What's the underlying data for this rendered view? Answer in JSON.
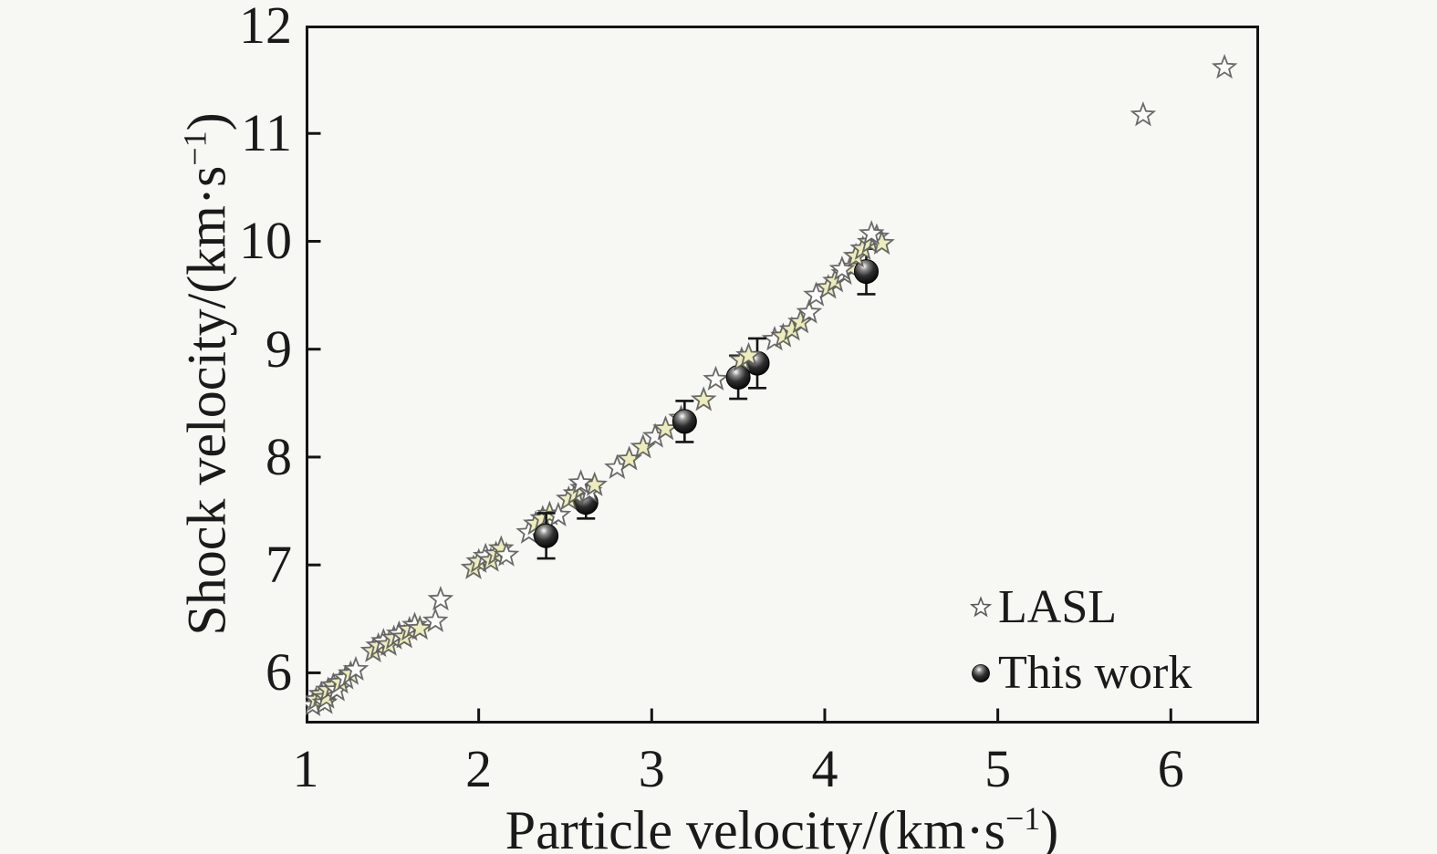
{
  "figure": {
    "background": "#f7f7f4",
    "frame_color": "#141414",
    "text_color": "#1a1a1a"
  },
  "axes": {
    "xlabel": {
      "prefix": "Particle velocity/(km·s",
      "sup": "−1",
      "suffix": ")"
    },
    "ylabel": {
      "prefix": "Shock velocity/(km·s",
      "sup": "−1",
      "suffix": ")"
    },
    "x_ticks": [
      1,
      2,
      3,
      4,
      5,
      6
    ],
    "y_ticks": [
      6,
      7,
      8,
      9,
      10,
      11,
      12
    ]
  },
  "legend": {
    "items": [
      {
        "label": "LASL",
        "marker": "open-star"
      },
      {
        "label": "This work",
        "marker": "filled-sphere"
      }
    ]
  },
  "chart_data": {
    "type": "scatter",
    "title": "",
    "xlabel": "Particle velocity/(km·s⁻¹)",
    "ylabel": "Shock velocity/(km·s⁻¹)",
    "xlim": [
      1,
      6.51
    ],
    "ylim": [
      5.53,
      12
    ],
    "x_ticks": [
      1,
      2,
      3,
      4,
      5,
      6
    ],
    "y_ticks": [
      6,
      7,
      8,
      9,
      10,
      11,
      12
    ],
    "grid": false,
    "legend_position": "inside lower right",
    "marker_styles": {
      "star_fill_yellow": "#ececbc",
      "star_fill_white": "#fcfcfa",
      "star_stroke": "#5a5a5a",
      "sphere_color": "#0a0a0a",
      "errorbar_color": "#141414"
    },
    "point_format_lasl": "[up, us, fill: y=pale-yellow | w=white, optional layer 2 = drawn above circles]",
    "point_format_this_work": "[up, us, y_error]",
    "series": [
      {
        "name": "LASL",
        "marker": "open-star",
        "points": [
          [
            1.04,
            5.7,
            "w"
          ],
          [
            1.06,
            5.75,
            "y"
          ],
          [
            1.09,
            5.8,
            "y"
          ],
          [
            1.11,
            5.72,
            "w"
          ],
          [
            1.12,
            5.77,
            "y"
          ],
          [
            1.13,
            5.84,
            "y"
          ],
          [
            1.16,
            5.88,
            "y"
          ],
          [
            1.18,
            5.84,
            "w"
          ],
          [
            1.2,
            5.91,
            "y"
          ],
          [
            1.23,
            5.95,
            "w"
          ],
          [
            1.26,
            5.99,
            "y"
          ],
          [
            1.29,
            6.03,
            "w"
          ],
          [
            1.39,
            6.2,
            "y"
          ],
          [
            1.42,
            6.25,
            "y"
          ],
          [
            1.45,
            6.29,
            "w"
          ],
          [
            1.48,
            6.26,
            "y"
          ],
          [
            1.51,
            6.32,
            "y"
          ],
          [
            1.54,
            6.36,
            "w"
          ],
          [
            1.57,
            6.33,
            "y"
          ],
          [
            1.6,
            6.4,
            "y"
          ],
          [
            1.63,
            6.44,
            "w"
          ],
          [
            1.66,
            6.41,
            "y"
          ],
          [
            1.75,
            6.48,
            "w"
          ],
          [
            1.78,
            6.68,
            "w"
          ],
          [
            1.97,
            6.97,
            "y"
          ],
          [
            2.0,
            7.03,
            "y"
          ],
          [
            2.04,
            7.08,
            "w"
          ],
          [
            2.07,
            7.04,
            "y"
          ],
          [
            2.1,
            7.1,
            "y"
          ],
          [
            2.13,
            7.15,
            "y"
          ],
          [
            2.16,
            7.09,
            "w"
          ],
          [
            2.29,
            7.3,
            "w"
          ],
          [
            2.33,
            7.38,
            "y"
          ],
          [
            2.37,
            7.43,
            "y"
          ],
          [
            2.41,
            7.47,
            "y"
          ],
          [
            2.46,
            7.46,
            "w"
          ],
          [
            2.52,
            7.61,
            "y",
            2
          ],
          [
            2.56,
            7.66,
            "y",
            2
          ],
          [
            2.6,
            7.71,
            "y",
            2
          ],
          [
            2.64,
            7.68,
            "w",
            2
          ],
          [
            2.67,
            7.74,
            "y",
            2
          ],
          [
            2.59,
            7.76,
            "w",
            2
          ],
          [
            2.8,
            7.9,
            "w"
          ],
          [
            2.87,
            7.98,
            "y"
          ],
          [
            2.95,
            8.09,
            "y"
          ],
          [
            3.02,
            8.19,
            "w"
          ],
          [
            3.08,
            8.26,
            "y"
          ],
          [
            3.17,
            8.36,
            "w"
          ],
          [
            3.3,
            8.53,
            "y"
          ],
          [
            3.37,
            8.72,
            "w"
          ],
          [
            3.52,
            8.9,
            "y",
            2
          ],
          [
            3.56,
            8.94,
            "y",
            2
          ],
          [
            3.71,
            9.09,
            "w"
          ],
          [
            3.76,
            9.12,
            "y"
          ],
          [
            3.81,
            9.18,
            "y"
          ],
          [
            3.86,
            9.25,
            "y"
          ],
          [
            3.91,
            9.34,
            "w"
          ],
          [
            3.95,
            9.5,
            "w"
          ],
          [
            4.02,
            9.57,
            "y"
          ],
          [
            4.06,
            9.63,
            "y"
          ],
          [
            4.11,
            9.7,
            "w"
          ],
          [
            4.15,
            9.76,
            "y"
          ],
          [
            4.1,
            9.74,
            "w"
          ],
          [
            4.18,
            9.86,
            "y",
            2
          ],
          [
            4.22,
            9.93,
            "y",
            2
          ],
          [
            4.26,
            9.99,
            "y",
            2
          ],
          [
            4.3,
            10.04,
            "w",
            2
          ],
          [
            4.33,
            9.98,
            "y",
            2
          ],
          [
            4.27,
            10.07,
            "w",
            2
          ],
          [
            5.84,
            11.17,
            "w"
          ],
          [
            6.31,
            11.61,
            "w"
          ]
        ]
      },
      {
        "name": "This work",
        "marker": "filled-circle-with-error-bar",
        "points": [
          [
            2.39,
            7.27,
            0.21
          ],
          [
            2.62,
            7.58,
            0.15
          ],
          [
            3.19,
            8.33,
            0.19
          ],
          [
            3.5,
            8.74,
            0.2
          ],
          [
            3.61,
            8.87,
            0.23
          ],
          [
            4.24,
            9.72,
            0.21
          ]
        ]
      }
    ]
  }
}
